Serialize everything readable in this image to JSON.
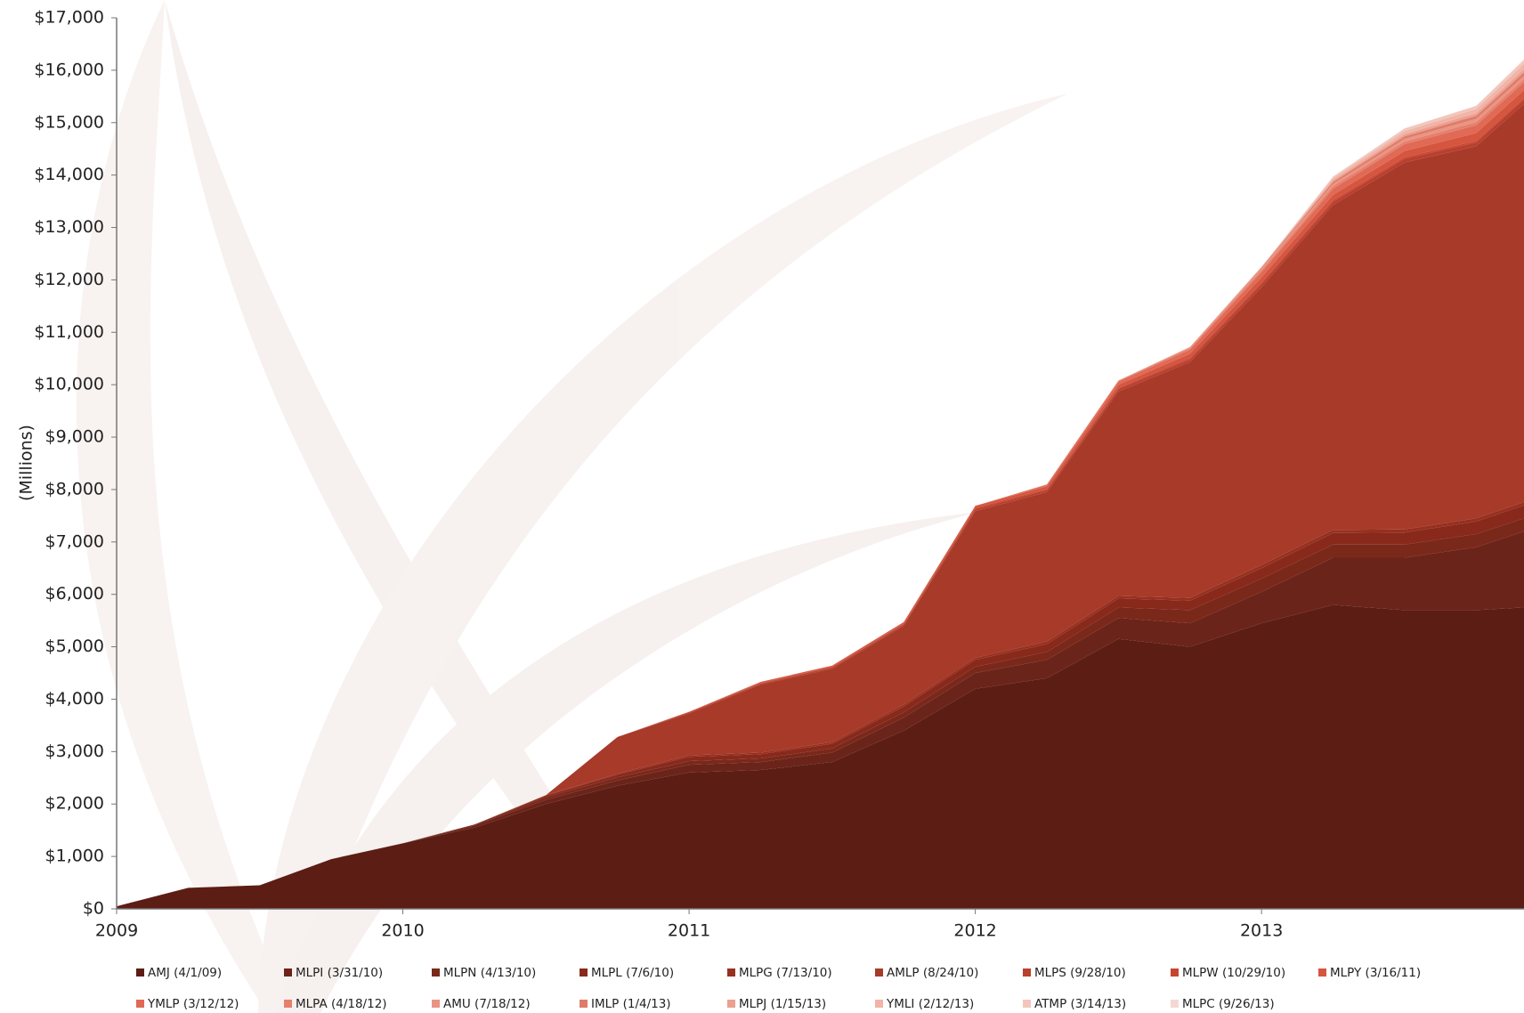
{
  "chart_data": {
    "type": "stacked_area",
    "y_label": "(Millions)",
    "x": [
      2009,
      2009.25,
      2009.5,
      2009.75,
      2010,
      2010.25,
      2010.5,
      2010.75,
      2011,
      2011.25,
      2011.5,
      2011.75,
      2012,
      2012.25,
      2012.5,
      2012.75,
      2013,
      2013.25,
      2013.5,
      2013.75,
      2013.917
    ],
    "xlim": [
      2009,
      2013.917
    ],
    "xticks": [
      2009,
      2010,
      2011,
      2012,
      2013
    ],
    "ylim": [
      0,
      17000
    ],
    "yticks": [
      {
        "value": 0,
        "label": "$0"
      },
      {
        "value": 1000,
        "label": "$1,000"
      },
      {
        "value": 2000,
        "label": "$2,000"
      },
      {
        "value": 3000,
        "label": "$3,000"
      },
      {
        "value": 4000,
        "label": "$4,000"
      },
      {
        "value": 5000,
        "label": "$5,000"
      },
      {
        "value": 6000,
        "label": "$6,000"
      },
      {
        "value": 7000,
        "label": "$7,000"
      },
      {
        "value": 8000,
        "label": "$8,000"
      },
      {
        "value": 9000,
        "label": "$9,000"
      },
      {
        "value": 10000,
        "label": "$10,000"
      },
      {
        "value": 11000,
        "label": "$11,000"
      },
      {
        "value": 12000,
        "label": "$12,000"
      },
      {
        "value": 13000,
        "label": "$13,000"
      },
      {
        "value": 14000,
        "label": "$14,000"
      },
      {
        "value": 15000,
        "label": "$15,000"
      },
      {
        "value": 16000,
        "label": "$16,000"
      },
      {
        "value": 17000,
        "label": "$17,000"
      }
    ],
    "series": [
      {
        "name": "AMJ (4/1/09)",
        "color": "#5c1d15",
        "values": [
          50,
          400,
          450,
          950,
          1250,
          1550,
          2000,
          2350,
          2600,
          2650,
          2800,
          3400,
          4200,
          4400,
          5150,
          5000,
          5450,
          5800,
          5700,
          5700,
          5750
        ]
      },
      {
        "name": "MLPI (3/31/10)",
        "color": "#6b2419",
        "values": [
          0,
          0,
          0,
          0,
          0,
          40,
          80,
          100,
          150,
          150,
          180,
          250,
          300,
          350,
          400,
          450,
          600,
          900,
          1000,
          1200,
          1450
        ]
      },
      {
        "name": "MLPN (4/13/10)",
        "color": "#7a281a",
        "values": [
          0,
          0,
          0,
          0,
          0,
          20,
          50,
          60,
          70,
          70,
          80,
          100,
          120,
          150,
          200,
          250,
          250,
          250,
          250,
          250,
          250
        ]
      },
      {
        "name": "MLPL (7/6/10)",
        "color": "#88291c",
        "values": [
          0,
          0,
          0,
          0,
          0,
          0,
          30,
          50,
          80,
          80,
          90,
          110,
          130,
          150,
          170,
          180,
          200,
          220,
          230,
          240,
          250
        ]
      },
      {
        "name": "MLPG (7/13/10)",
        "color": "#96301f",
        "values": [
          0,
          0,
          0,
          0,
          0,
          0,
          10,
          20,
          30,
          30,
          30,
          40,
          40,
          50,
          50,
          50,
          60,
          60,
          60,
          60,
          60
        ]
      },
      {
        "name": "AMLP (8/24/10)",
        "color": "#a83a2a",
        "values": [
          0,
          0,
          0,
          0,
          0,
          0,
          0,
          700,
          800,
          1300,
          1400,
          1500,
          2800,
          2850,
          3900,
          4500,
          5300,
          6200,
          7000,
          7100,
          7600
        ]
      },
      {
        "name": "MLPS (9/28/10)",
        "color": "#b8402e",
        "values": [
          0,
          0,
          0,
          0,
          0,
          0,
          0,
          0,
          20,
          20,
          30,
          30,
          40,
          40,
          50,
          50,
          60,
          60,
          70,
          70,
          80
        ]
      },
      {
        "name": "MLPW (10/29/10)",
        "color": "#c84430",
        "values": [
          0,
          0,
          0,
          0,
          0,
          0,
          0,
          0,
          10,
          10,
          10,
          10,
          20,
          20,
          20,
          30,
          30,
          30,
          30,
          30,
          30
        ]
      },
      {
        "name": "MLPY (3/16/11)",
        "color": "#d5553f",
        "values": [
          0,
          0,
          0,
          0,
          0,
          0,
          0,
          0,
          0,
          20,
          20,
          30,
          40,
          50,
          60,
          80,
          100,
          100,
          120,
          150,
          150
        ]
      },
      {
        "name": "YMLP (3/12/12)",
        "color": "#e06a56",
        "values": [
          0,
          0,
          0,
          0,
          0,
          0,
          0,
          0,
          0,
          0,
          0,
          0,
          0,
          30,
          60,
          80,
          100,
          120,
          130,
          150,
          150
        ]
      },
      {
        "name": "MLPA (4/18/12)",
        "color": "#e5806d",
        "values": [
          0,
          0,
          0,
          0,
          0,
          0,
          0,
          0,
          0,
          0,
          0,
          0,
          0,
          10,
          20,
          30,
          40,
          50,
          50,
          60,
          60
        ]
      },
      {
        "name": "AMU (7/18/12)",
        "color": "#ea9583",
        "values": [
          0,
          0,
          0,
          0,
          0,
          0,
          0,
          0,
          0,
          0,
          0,
          0,
          0,
          0,
          0,
          20,
          30,
          40,
          50,
          60,
          60
        ]
      },
      {
        "name": "IMLP (1/4/13)",
        "color": "#e07b6a",
        "values": [
          0,
          0,
          0,
          0,
          0,
          0,
          0,
          0,
          0,
          0,
          0,
          0,
          0,
          0,
          0,
          0,
          20,
          40,
          50,
          60,
          70
        ]
      },
      {
        "name": "MLPJ (1/15/13)",
        "color": "#eba090",
        "values": [
          0,
          0,
          0,
          0,
          0,
          0,
          0,
          0,
          0,
          0,
          0,
          0,
          0,
          0,
          0,
          0,
          10,
          30,
          40,
          50,
          60
        ]
      },
      {
        "name": "YMLI (2/12/13)",
        "color": "#f0b5a8",
        "values": [
          0,
          0,
          0,
          0,
          0,
          0,
          0,
          0,
          0,
          0,
          0,
          0,
          0,
          0,
          0,
          0,
          0,
          40,
          60,
          80,
          100
        ]
      },
      {
        "name": "ATMP (3/14/13)",
        "color": "#f3c6bc",
        "values": [
          0,
          0,
          0,
          0,
          0,
          0,
          0,
          0,
          0,
          0,
          0,
          0,
          0,
          0,
          0,
          0,
          0,
          30,
          50,
          60,
          70
        ]
      },
      {
        "name": "MLPC (9/26/13)",
        "color": "#f6d8d2",
        "values": [
          0,
          0,
          0,
          0,
          0,
          0,
          0,
          0,
          0,
          0,
          0,
          0,
          0,
          0,
          0,
          0,
          0,
          0,
          0,
          0,
          20
        ]
      }
    ]
  }
}
